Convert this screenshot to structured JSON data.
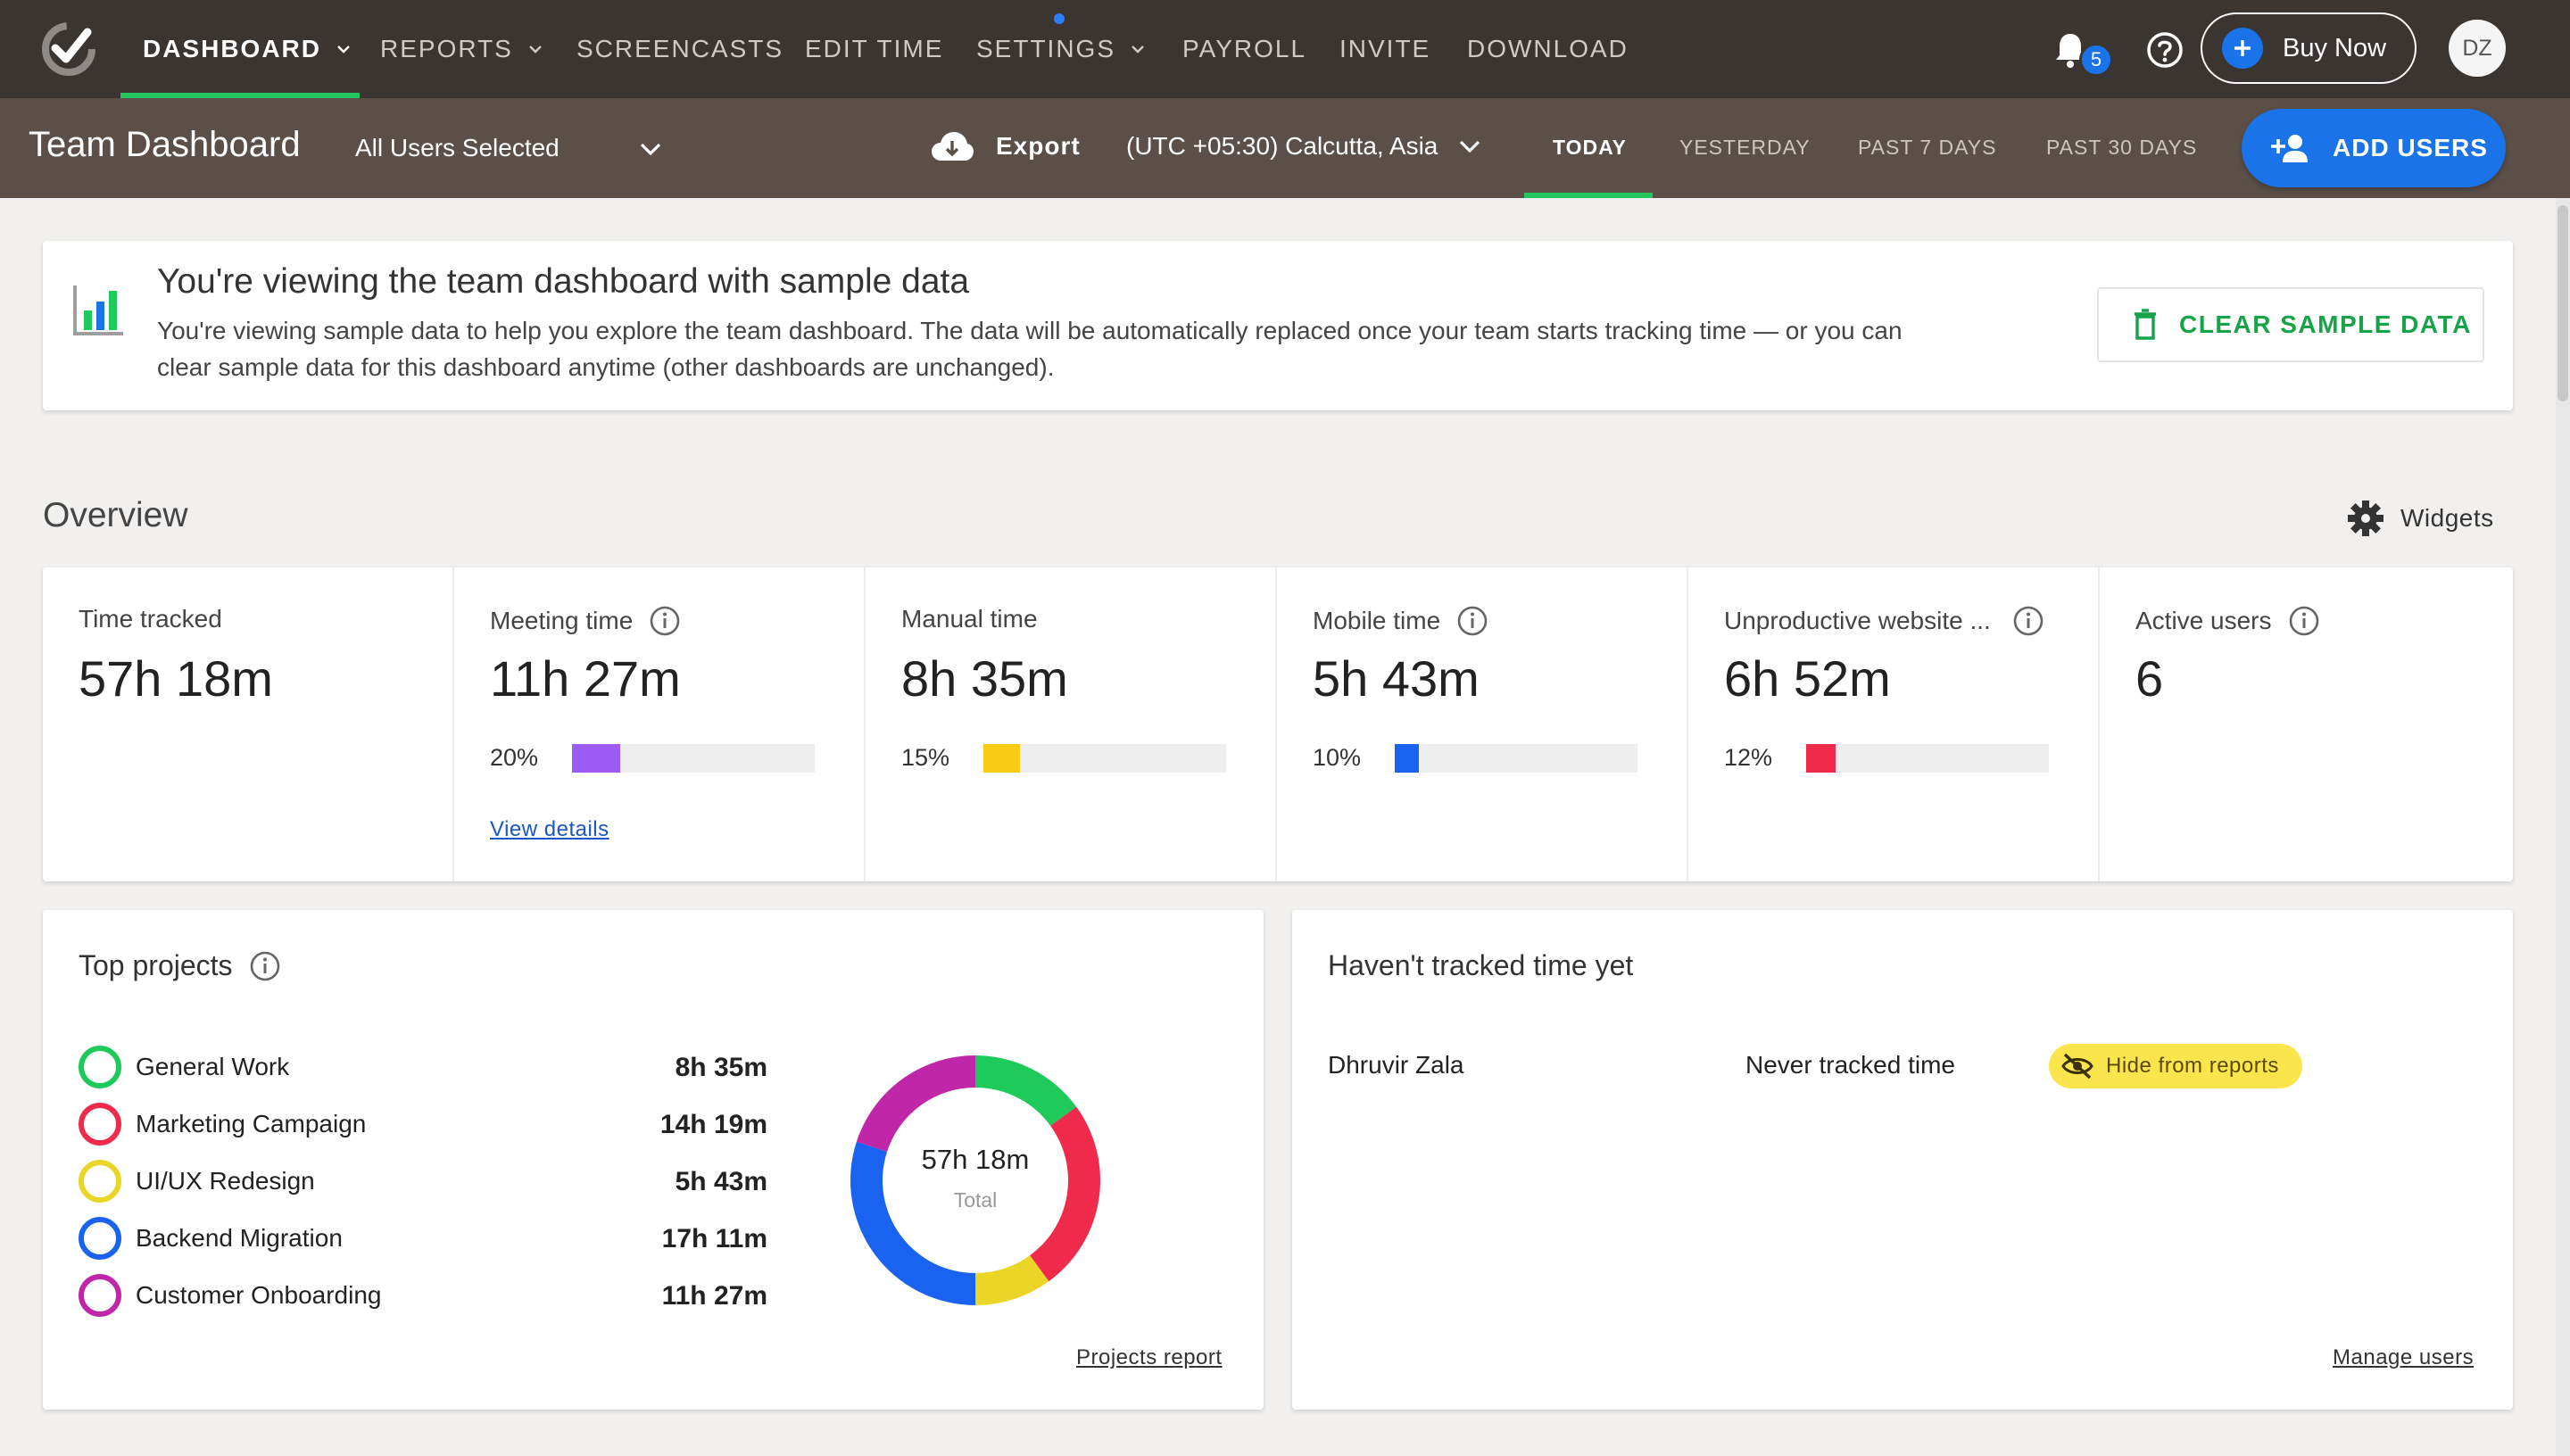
{
  "nav": {
    "items": [
      {
        "label": "DASHBOARD",
        "active": true,
        "dropdown": true
      },
      {
        "label": "REPORTS",
        "dropdown": true
      },
      {
        "label": "SCREENCASTS"
      },
      {
        "label": "EDIT TIME"
      },
      {
        "label": "SETTINGS",
        "dropdown": true
      },
      {
        "label": "PAYROLL"
      },
      {
        "label": "INVITE"
      },
      {
        "label": "DOWNLOAD"
      }
    ],
    "notification_count": "5",
    "buy_label": "Buy Now",
    "avatar_initials": "DZ"
  },
  "subheader": {
    "title": "Team Dashboard",
    "user_filter": "All Users Selected",
    "export_label": "Export",
    "timezone": "(UTC +05:30) Calcutta, Asia",
    "ranges": [
      {
        "label": "TODAY",
        "active": true
      },
      {
        "label": "YESTERDAY"
      },
      {
        "label": "PAST 7 DAYS"
      },
      {
        "label": "PAST 30 DAYS"
      }
    ],
    "add_users_label": "ADD USERS"
  },
  "banner": {
    "title": "You're viewing the team dashboard with sample data",
    "text": "You're viewing sample data to help you explore the team dashboard. The data will be automatically replaced once your team starts tracking time — or you can clear sample data for this dashboard anytime (other dashboards are unchanged).",
    "clear_label": "CLEAR SAMPLE DATA"
  },
  "overview": {
    "title": "Overview",
    "widgets_label": "Widgets",
    "stats": [
      {
        "label": "Time tracked",
        "value": "57h 18m"
      },
      {
        "label": "Meeting time",
        "value": "11h 27m",
        "pct": "20%",
        "fraction": 0.2,
        "color": "#9b5cf6",
        "link": "View details",
        "info": true
      },
      {
        "label": "Manual time",
        "value": "8h 35m",
        "pct": "15%",
        "fraction": 0.15,
        "color": "#facc15",
        "info": false
      },
      {
        "label": "Mobile time",
        "value": "5h 43m",
        "pct": "10%",
        "fraction": 0.1,
        "color": "#1a63f0",
        "info": true
      },
      {
        "label": "Unproductive website ...",
        "value": "6h 52m",
        "pct": "12%",
        "fraction": 0.12,
        "color": "#ef2a4a",
        "info": true
      },
      {
        "label": "Active users",
        "value": "6",
        "info": true
      }
    ]
  },
  "projects": {
    "title": "Top projects",
    "items": [
      {
        "name": "General Work",
        "time": "8h 35m",
        "color": "#1ecb5a"
      },
      {
        "name": "Marketing Campaign",
        "time": "14h 19m",
        "color": "#ef2a4a"
      },
      {
        "name": "UI/UX Redesign",
        "time": "5h 43m",
        "color": "#ebd627"
      },
      {
        "name": "Backend Migration",
        "time": "17h 11m",
        "color": "#1a63f0"
      },
      {
        "name": "Customer Onboarding",
        "time": "11h 27m",
        "color": "#c026a8"
      }
    ],
    "donut_total": "57h 18m",
    "donut_label": "Total",
    "report_link": "Projects report"
  },
  "untracked": {
    "title": "Haven't tracked time yet",
    "user_name": "Dhruvir Zala",
    "status": "Never tracked time",
    "hide_label": "Hide from reports",
    "manage_link": "Manage users"
  },
  "icons": {
    "logo": "check-logo-icon",
    "bell": "bell-icon",
    "help": "help-circle-icon",
    "export": "cloud-download-icon",
    "add_user": "person-add-icon",
    "chart": "bar-chart-icon",
    "trash": "trash-icon",
    "gear": "gear-icon",
    "info": "info-icon",
    "hide": "eye-off-icon"
  }
}
